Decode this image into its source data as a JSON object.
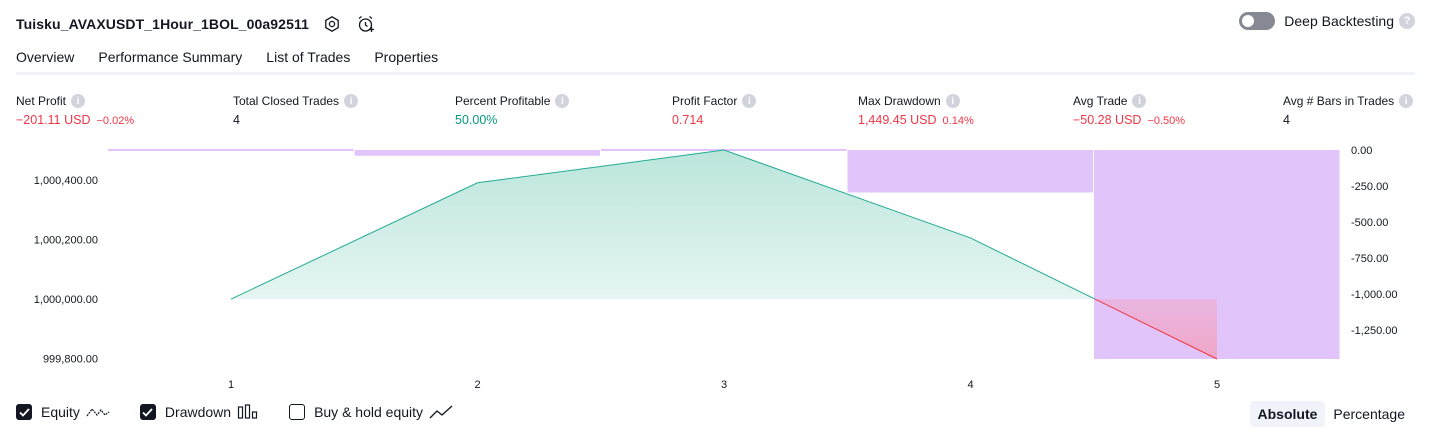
{
  "header": {
    "title": "Tuisku_AVAXUSDT_1Hour_1BOL_00a92511",
    "deep_backtesting_label": "Deep Backtesting"
  },
  "tabs": [
    {
      "label": "Overview",
      "active": true
    },
    {
      "label": "Performance Summary",
      "active": false
    },
    {
      "label": "List of Trades",
      "active": false
    },
    {
      "label": "Properties",
      "active": false
    }
  ],
  "metrics": [
    {
      "label": "Net Profit",
      "value": "−201.11 USD",
      "sub": "−0.02%",
      "color": "red"
    },
    {
      "label": "Total Closed Trades",
      "value": "4",
      "sub": "",
      "color": "dark"
    },
    {
      "label": "Percent Profitable",
      "value": "50.00%",
      "sub": "",
      "color": "green"
    },
    {
      "label": "Profit Factor",
      "value": "0.714",
      "sub": "",
      "color": "red"
    },
    {
      "label": "Max Drawdown",
      "value": "1,449.45 USD",
      "sub": "0.14%",
      "color": "red"
    },
    {
      "label": "Avg Trade",
      "value": "−50.28 USD",
      "sub": "−0.50%",
      "color": "red"
    },
    {
      "label": "Avg # Bars in Trades",
      "value": "4",
      "sub": "",
      "color": "dark"
    }
  ],
  "chart_data": {
    "type": "line",
    "x": [
      1,
      2,
      3,
      4,
      5
    ],
    "series": [
      {
        "name": "Equity",
        "values": [
          1000000,
          1000390,
          1000500,
          1000205,
          999799
        ]
      },
      {
        "name": "Drawdown",
        "values": [
          0,
          -40,
          0,
          -295,
          -1449.45
        ]
      }
    ],
    "left_ticks": [
      "1,000,400.00",
      "1,000,200.00",
      "1,000,000.00",
      "999,800.00"
    ],
    "right_ticks": [
      "0.00",
      "-250.00",
      "-500.00",
      "-750.00",
      "-1,000.00",
      "-1,250.00"
    ],
    "x_ticks": [
      "1",
      "2",
      "3",
      "4",
      "5"
    ],
    "ylim_left": [
      999799,
      1000500
    ],
    "ylim_right": [
      -1449.45,
      0
    ],
    "colors": {
      "equity_line": "#22ab94",
      "equity_fill": "#b7e4da",
      "loss_line": "#f23645",
      "loss_fill": "#f0a7c7",
      "drawdown": "#e1c4fa"
    }
  },
  "legend": [
    {
      "label": "Equity",
      "checked": true,
      "icon": "equity-line-icon"
    },
    {
      "label": "Drawdown",
      "checked": true,
      "icon": "drawdown-bars-icon"
    },
    {
      "label": "Buy & hold equity",
      "checked": false,
      "icon": "buy-hold-line-icon"
    }
  ],
  "modes": [
    {
      "label": "Absolute",
      "active": true
    },
    {
      "label": "Percentage",
      "active": false
    }
  ]
}
